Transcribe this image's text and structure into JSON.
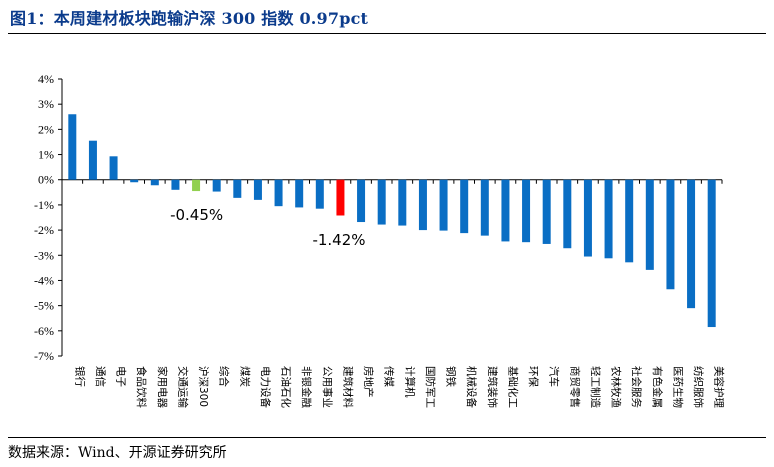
{
  "title": "图1：本周建材板块跑输沪深 300 指数 0.97pct",
  "source": "数据来源：Wind、开源证券研究所",
  "colors": {
    "title": "#0b3b8c",
    "bar_default": "#0a6ec4",
    "bar_index": "#92d050",
    "bar_sector": "#ff0000"
  },
  "chart_data": {
    "type": "bar",
    "categories": [
      "银行",
      "通信",
      "电子",
      "食品饮料",
      "家用电器",
      "交通运输",
      "沪深300",
      "综合",
      "煤炭",
      "电力设备",
      "石油石化",
      "非银金融",
      "公用事业",
      "建筑材料",
      "房地产",
      "传媒",
      "计算机",
      "国防军工",
      "钢铁",
      "机械设备",
      "建筑装饰",
      "基础化工",
      "环保",
      "汽车",
      "商贸零售",
      "轻工制造",
      "农林牧渔",
      "社会服务",
      "有色金属",
      "医药生物",
      "纺织服饰",
      "美容护理"
    ],
    "values": [
      2.6,
      1.55,
      0.93,
      -0.1,
      -0.22,
      -0.4,
      -0.45,
      -0.47,
      -0.72,
      -0.8,
      -1.05,
      -1.1,
      -1.15,
      -1.42,
      -1.68,
      -1.78,
      -1.82,
      -2.0,
      -2.02,
      -2.12,
      -2.22,
      -2.45,
      -2.48,
      -2.55,
      -2.72,
      -3.05,
      -3.12,
      -3.28,
      -3.58,
      -4.35,
      -5.1,
      -5.85
    ],
    "highlight": {
      "沪深300": "index",
      "建筑材料": "sector"
    },
    "annotations": [
      {
        "category": "沪深300",
        "text": "-0.45%"
      },
      {
        "category": "建筑材料",
        "text": "-1.42%"
      }
    ],
    "yticks": [
      "4%",
      "3%",
      "2%",
      "1%",
      "0%",
      "-1%",
      "-2%",
      "-3%",
      "-4%",
      "-5%",
      "-6%",
      "-7%"
    ],
    "ylim": [
      -7,
      4
    ],
    "ylabel_format": "percent",
    "grid": false,
    "legend": "none"
  }
}
